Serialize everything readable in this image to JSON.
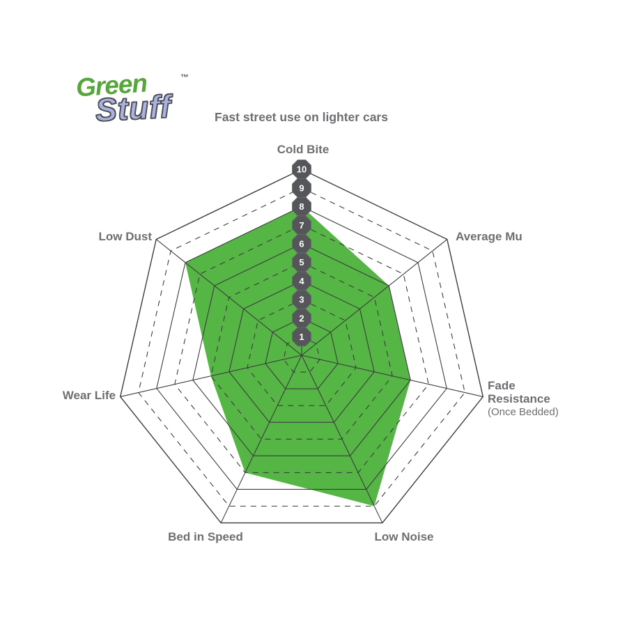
{
  "logo": {
    "word1": "Green",
    "word2": "Stuff",
    "trademark": "™"
  },
  "title": "Fast street use on lighter cars",
  "chart_data": {
    "type": "radar",
    "title": "Fast street use on lighter cars",
    "categories": [
      "Cold Bite",
      "Average Mu",
      "Fade Resistance",
      "Low Noise",
      "Bed in Speed",
      "Wear Life",
      "Low Dust"
    ],
    "fade_resistance_note": "(Once Bedded)",
    "values": [
      8,
      6,
      6,
      9,
      7,
      5,
      8
    ],
    "axis_ticks": [
      1,
      2,
      3,
      4,
      5,
      6,
      7,
      8,
      9,
      10
    ],
    "axis_range": [
      0,
      10
    ],
    "rings_solid": [
      2,
      4,
      6,
      8,
      10
    ],
    "rings_dashed": [
      1,
      3,
      5,
      7,
      9
    ],
    "legend_position": "none",
    "grid": true,
    "colors": {
      "series_fill": "#55b545",
      "grid_line": "#3c3c3c",
      "badge_bg": "#55565a",
      "badge_text": "#ffffff",
      "label_text": "#6d6e71",
      "logo_green": "#56a63b",
      "logo_lavender": "#aab3dc",
      "logo_outline": "#4d4d57"
    }
  }
}
